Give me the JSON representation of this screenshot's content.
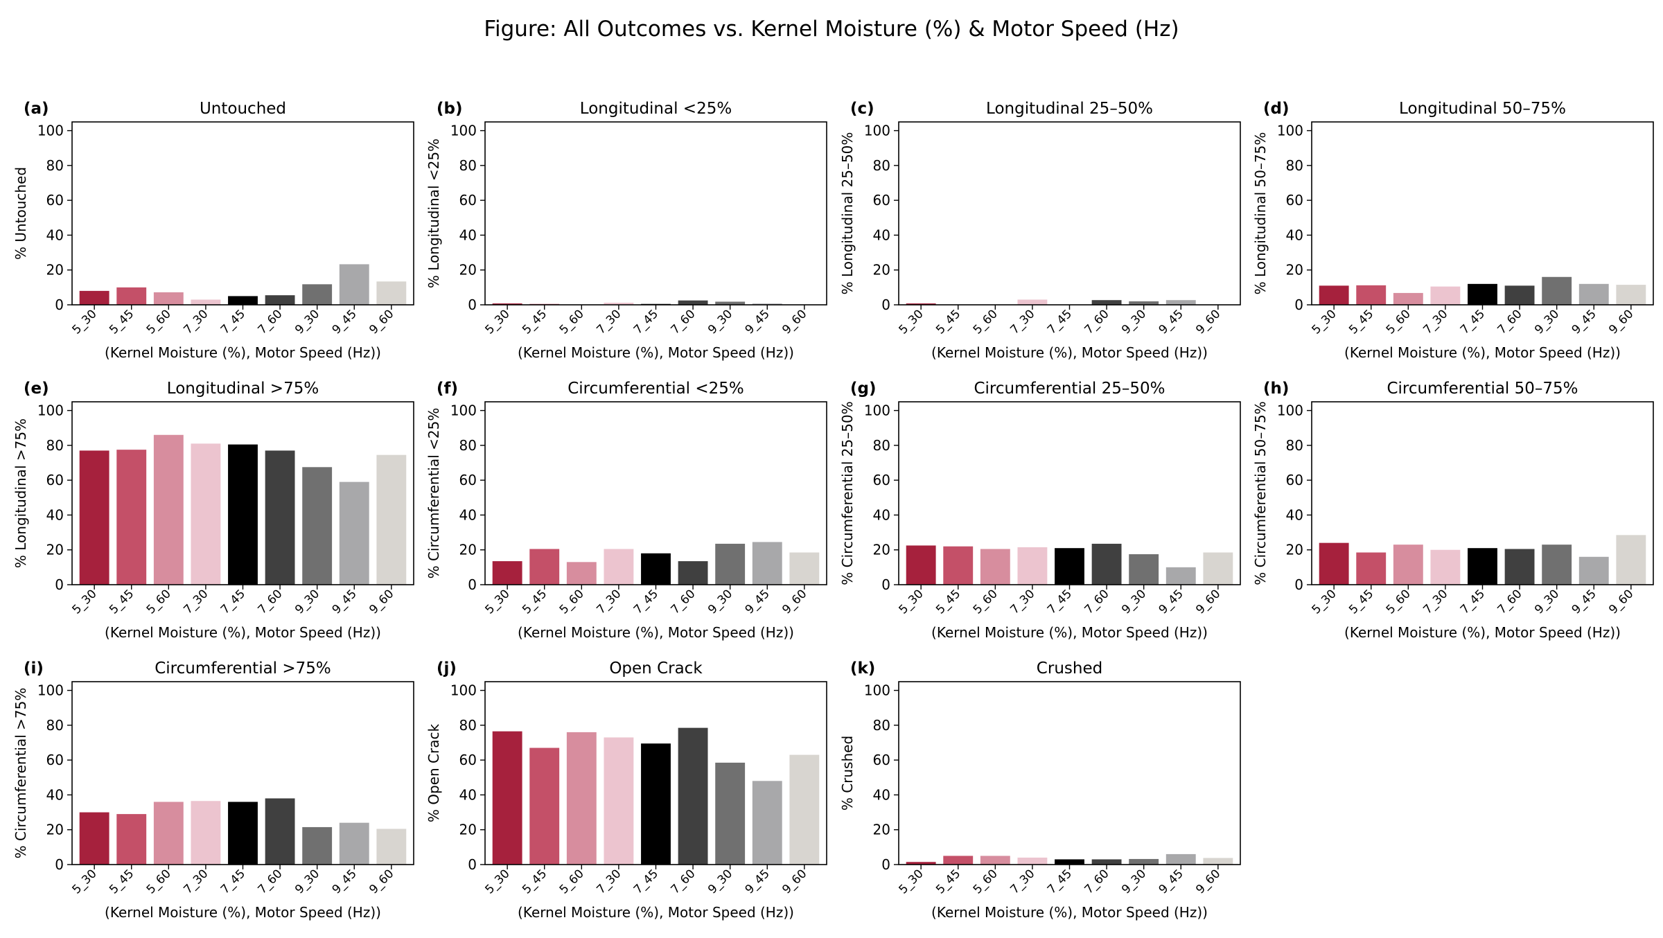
{
  "figure": {
    "title": "Figure: All Outcomes vs. Kernel Moisture (%) & Motor Speed (Hz)"
  },
  "colors": {
    "bars": [
      "#a6213d",
      "#c45068",
      "#d78d9e",
      "#ecc4cf",
      "#000000",
      "#404040",
      "#707070",
      "#a8a8aa",
      "#d8d5d0"
    ],
    "axis": "#000000",
    "background": "#ffffff"
  },
  "chart_data": [
    {
      "type": "bar",
      "panel_label": "(a)",
      "title": "Untouched",
      "xlabel": "(Kernel Moisture (%), Motor Speed (Hz))",
      "ylabel": "% Untouched",
      "categories": [
        "5_30",
        "5_45",
        "5_60",
        "7_30",
        "7_45",
        "7_60",
        "9_30",
        "9_45",
        "9_60"
      ],
      "values": [
        8.0,
        10.0,
        7.2,
        3.0,
        5.0,
        5.5,
        11.8,
        23.3,
        13.4
      ],
      "ylim": [
        0,
        105
      ],
      "yticks": [
        0,
        20,
        40,
        60,
        80,
        100
      ],
      "grid": false,
      "legend": "none"
    },
    {
      "type": "bar",
      "panel_label": "(b)",
      "title": "Longitudinal <25%",
      "xlabel": "(Kernel Moisture (%), Motor Speed (Hz))",
      "ylabel": "% Longitudinal <25%",
      "categories": [
        "5_30",
        "5_45",
        "5_60",
        "7_30",
        "7_45",
        "7_60",
        "9_30",
        "9_45",
        "9_60"
      ],
      "values": [
        0.8,
        0.5,
        0.0,
        1.2,
        0.5,
        2.5,
        1.8,
        0.7,
        0.0
      ],
      "ylim": [
        0,
        105
      ],
      "yticks": [
        0,
        20,
        40,
        60,
        80,
        100
      ],
      "grid": false,
      "legend": "none"
    },
    {
      "type": "bar",
      "panel_label": "(c)",
      "title": "Longitudinal 25–50%",
      "xlabel": "(Kernel Moisture (%), Motor Speed (Hz))",
      "ylabel": "% Longitudinal 25–50%",
      "categories": [
        "5_30",
        "5_45",
        "5_60",
        "7_30",
        "7_45",
        "7_60",
        "9_30",
        "9_45",
        "9_60"
      ],
      "values": [
        0.8,
        0.0,
        0.0,
        3.0,
        0.0,
        2.7,
        2.0,
        2.7,
        0.0
      ],
      "ylim": [
        0,
        105
      ],
      "yticks": [
        0,
        20,
        40,
        60,
        80,
        100
      ],
      "grid": false,
      "legend": "none"
    },
    {
      "type": "bar",
      "panel_label": "(d)",
      "title": "Longitudinal 50–75%",
      "xlabel": "(Kernel Moisture (%), Motor Speed (Hz))",
      "ylabel": "% Longitudinal 50–75%",
      "categories": [
        "5_30",
        "5_45",
        "5_60",
        "7_30",
        "7_45",
        "7_60",
        "9_30",
        "9_45",
        "9_60"
      ],
      "values": [
        11.0,
        11.2,
        6.8,
        10.5,
        12.0,
        11.0,
        16.0,
        12.0,
        11.5
      ],
      "ylim": [
        0,
        105
      ],
      "yticks": [
        0,
        20,
        40,
        60,
        80,
        100
      ],
      "grid": false,
      "legend": "none"
    },
    {
      "type": "bar",
      "panel_label": "(e)",
      "title": "Longitudinal >75%",
      "xlabel": "(Kernel Moisture (%), Motor Speed (Hz))",
      "ylabel": "% Longitudinal >75%",
      "categories": [
        "5_30",
        "5_45",
        "5_60",
        "7_30",
        "7_45",
        "7_60",
        "9_30",
        "9_45",
        "9_60"
      ],
      "values": [
        77.0,
        77.5,
        86.0,
        81.0,
        80.5,
        77.0,
        67.5,
        59.0,
        74.5
      ],
      "ylim": [
        0,
        105
      ],
      "yticks": [
        0,
        20,
        40,
        60,
        80,
        100
      ],
      "grid": false,
      "legend": "none"
    },
    {
      "type": "bar",
      "panel_label": "(f)",
      "title": "Circumferential <25%",
      "xlabel": "(Kernel Moisture (%), Motor Speed (Hz))",
      "ylabel": "% Circumferential <25%",
      "categories": [
        "5_30",
        "5_45",
        "5_60",
        "7_30",
        "7_45",
        "7_60",
        "9_30",
        "9_45",
        "9_60"
      ],
      "values": [
        13.5,
        20.5,
        13.0,
        20.5,
        18.0,
        13.5,
        23.5,
        24.5,
        18.5
      ],
      "ylim": [
        0,
        105
      ],
      "yticks": [
        0,
        20,
        40,
        60,
        80,
        100
      ],
      "grid": false,
      "legend": "none"
    },
    {
      "type": "bar",
      "panel_label": "(g)",
      "title": "Circumferential 25–50%",
      "xlabel": "(Kernel Moisture (%), Motor Speed (Hz))",
      "ylabel": "% Circumferential 25–50%",
      "categories": [
        "5_30",
        "5_45",
        "5_60",
        "7_30",
        "7_45",
        "7_60",
        "9_30",
        "9_45",
        "9_60"
      ],
      "values": [
        22.5,
        22.0,
        20.5,
        21.5,
        21.0,
        23.5,
        17.5,
        10.0,
        18.5
      ],
      "ylim": [
        0,
        105
      ],
      "yticks": [
        0,
        20,
        40,
        60,
        80,
        100
      ],
      "grid": false,
      "legend": "none"
    },
    {
      "type": "bar",
      "panel_label": "(h)",
      "title": "Circumferential 50–75%",
      "xlabel": "(Kernel Moisture (%), Motor Speed (Hz))",
      "ylabel": "% Circumferential 50–75%",
      "categories": [
        "5_30",
        "5_45",
        "5_60",
        "7_30",
        "7_45",
        "7_60",
        "9_30",
        "9_45",
        "9_60"
      ],
      "values": [
        24.0,
        18.5,
        23.0,
        20.0,
        21.0,
        20.5,
        23.0,
        16.0,
        28.5
      ],
      "ylim": [
        0,
        105
      ],
      "yticks": [
        0,
        20,
        40,
        60,
        80,
        100
      ],
      "grid": false,
      "legend": "none"
    },
    {
      "type": "bar",
      "panel_label": "(i)",
      "title": "Circumferential >75%",
      "xlabel": "(Kernel Moisture (%), Motor Speed (Hz))",
      "ylabel": "% Circumferential >75%",
      "categories": [
        "5_30",
        "5_45",
        "5_60",
        "7_30",
        "7_45",
        "7_60",
        "9_30",
        "9_45",
        "9_60"
      ],
      "values": [
        30.0,
        29.0,
        36.0,
        36.5,
        36.0,
        38.0,
        21.5,
        24.0,
        20.5
      ],
      "ylim": [
        0,
        105
      ],
      "yticks": [
        0,
        20,
        40,
        60,
        80,
        100
      ],
      "grid": false,
      "legend": "none"
    },
    {
      "type": "bar",
      "panel_label": "(j)",
      "title": "Open Crack",
      "xlabel": "(Kernel Moisture (%), Motor Speed (Hz))",
      "ylabel": "% Open Crack",
      "categories": [
        "5_30",
        "5_45",
        "5_60",
        "7_30",
        "7_45",
        "7_60",
        "9_30",
        "9_45",
        "9_60"
      ],
      "values": [
        76.5,
        67.0,
        76.0,
        73.0,
        69.5,
        78.5,
        58.5,
        48.0,
        63.0
      ],
      "ylim": [
        0,
        105
      ],
      "yticks": [
        0,
        20,
        40,
        60,
        80,
        100
      ],
      "grid": false,
      "legend": "none"
    },
    {
      "type": "bar",
      "panel_label": "(k)",
      "title": "Crushed",
      "xlabel": "(Kernel Moisture (%), Motor Speed (Hz))",
      "ylabel": "% Crushed",
      "categories": [
        "5_30",
        "5_45",
        "5_60",
        "7_30",
        "7_45",
        "7_60",
        "9_30",
        "9_45",
        "9_60"
      ],
      "values": [
        1.5,
        5.0,
        5.0,
        4.0,
        3.0,
        3.0,
        3.2,
        6.0,
        3.8
      ],
      "ylim": [
        0,
        105
      ],
      "yticks": [
        0,
        20,
        40,
        60,
        80,
        100
      ],
      "grid": false,
      "legend": "none"
    }
  ]
}
